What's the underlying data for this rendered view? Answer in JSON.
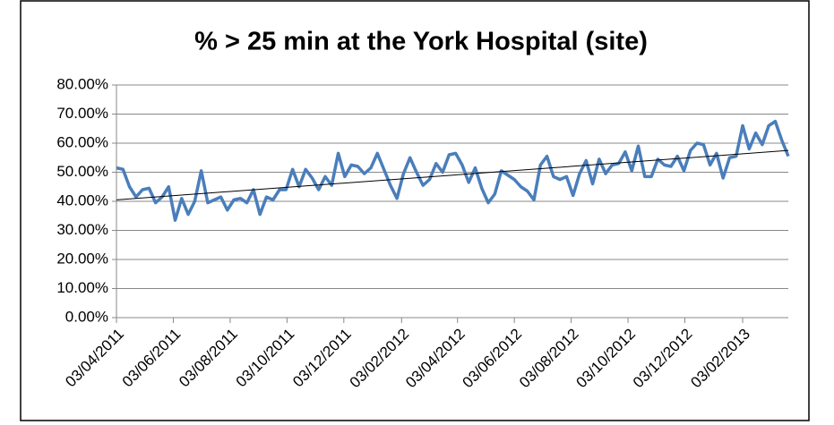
{
  "chart_data": {
    "type": "line",
    "title": "% > 25 min at the York Hospital (site)",
    "x": [
      "03/04/2011",
      "10/04/2011",
      "17/04/2011",
      "24/04/2011",
      "01/05/2011",
      "08/05/2011",
      "15/05/2011",
      "22/05/2011",
      "29/05/2011",
      "05/06/2011",
      "12/06/2011",
      "19/06/2011",
      "26/06/2011",
      "03/07/2011",
      "10/07/2011",
      "17/07/2011",
      "24/07/2011",
      "31/07/2011",
      "07/08/2011",
      "14/08/2011",
      "21/08/2011",
      "28/08/2011",
      "04/09/2011",
      "11/09/2011",
      "18/09/2011",
      "25/09/2011",
      "02/10/2011",
      "09/10/2011",
      "16/10/2011",
      "23/10/2011",
      "30/10/2011",
      "06/11/2011",
      "13/11/2011",
      "20/11/2011",
      "27/11/2011",
      "04/12/2011",
      "11/12/2011",
      "18/12/2011",
      "25/12/2011",
      "01/01/2012",
      "08/01/2012",
      "15/01/2012",
      "22/01/2012",
      "29/01/2012",
      "05/02/2012",
      "12/02/2012",
      "19/02/2012",
      "26/02/2012",
      "04/03/2012",
      "11/03/2012",
      "18/03/2012",
      "25/03/2012",
      "01/04/2012",
      "08/04/2012",
      "15/04/2012",
      "22/04/2012",
      "29/04/2012",
      "06/05/2012",
      "13/05/2012",
      "20/05/2012",
      "27/05/2012",
      "03/06/2012",
      "10/06/2012",
      "17/06/2012",
      "24/06/2012",
      "01/07/2012",
      "08/07/2012",
      "15/07/2012",
      "22/07/2012",
      "29/07/2012",
      "05/08/2012",
      "12/08/2012",
      "19/08/2012",
      "26/08/2012",
      "02/09/2012",
      "09/09/2012",
      "16/09/2012",
      "23/09/2012",
      "30/09/2012",
      "07/10/2012",
      "14/10/2012",
      "21/10/2012",
      "28/10/2012",
      "04/11/2012",
      "11/11/2012",
      "18/11/2012",
      "25/11/2012",
      "02/12/2012",
      "09/12/2012",
      "16/12/2012",
      "23/12/2012",
      "30/12/2012",
      "06/01/2013",
      "13/01/2013",
      "20/01/2013",
      "27/01/2013",
      "03/02/2013",
      "10/02/2013",
      "17/02/2013",
      "24/02/2013",
      "03/03/2013",
      "10/03/2013",
      "17/03/2013",
      "24/03/2013"
    ],
    "series": [
      {
        "color": "#4a7ebb",
        "values": [
          51.5,
          51,
          45,
          41.5,
          44,
          44.5,
          39.5,
          41.5,
          45,
          33.5,
          41,
          35.5,
          40,
          50.5,
          39.5,
          40.5,
          41.5,
          37,
          40.5,
          41,
          39.5,
          44,
          35.5,
          41.5,
          40.5,
          44,
          44,
          51,
          45,
          51,
          48,
          44,
          48.5,
          45.5,
          56.5,
          48.5,
          52.5,
          52,
          49.5,
          51.5,
          56.5,
          51,
          45.5,
          41,
          49.5,
          55,
          50,
          45.5,
          47.5,
          53,
          50,
          56,
          56.5,
          52.5,
          46.5,
          51.5,
          44.5,
          39.5,
          42.5,
          50.5,
          49,
          47.5,
          45,
          43.5,
          40.5,
          52.5,
          55.5,
          48.5,
          47.5,
          48.5,
          42,
          49.5,
          54,
          46,
          54.5,
          49.5,
          52.5,
          53,
          57,
          50.5,
          59,
          48.5,
          48.5,
          54.5,
          52.5,
          52,
          55.5,
          50.5,
          57.5,
          60,
          59.5,
          52.5,
          56.5,
          48,
          55,
          55.5,
          66,
          58,
          63.5,
          59.5,
          66,
          67.5,
          61,
          55.5
        ]
      }
    ],
    "trendline": {
      "color": "#000000",
      "values": [
        40.5,
        57.5
      ]
    },
    "xlim": [
      "03/04/2011",
      "24/03/2013"
    ],
    "xticks": [
      "03/04/2011",
      "03/06/2011",
      "03/08/2011",
      "03/10/2011",
      "03/12/2011",
      "03/02/2012",
      "03/04/2012",
      "03/06/2012",
      "03/08/2012",
      "03/10/2012",
      "03/12/2012",
      "03/02/2013"
    ],
    "ylim": [
      0,
      80
    ],
    "yticks": [
      {
        "value": 0,
        "label": "0.00%"
      },
      {
        "value": 10,
        "label": "10.00%"
      },
      {
        "value": 20,
        "label": "20.00%"
      },
      {
        "value": 30,
        "label": "30.00%"
      },
      {
        "value": 40,
        "label": "40.00%"
      },
      {
        "value": 50,
        "label": "50.00%"
      },
      {
        "value": 60,
        "label": "60.00%"
      },
      {
        "value": 70,
        "label": "70.00%"
      },
      {
        "value": 80,
        "label": "80.00%"
      }
    ],
    "grid": true
  }
}
